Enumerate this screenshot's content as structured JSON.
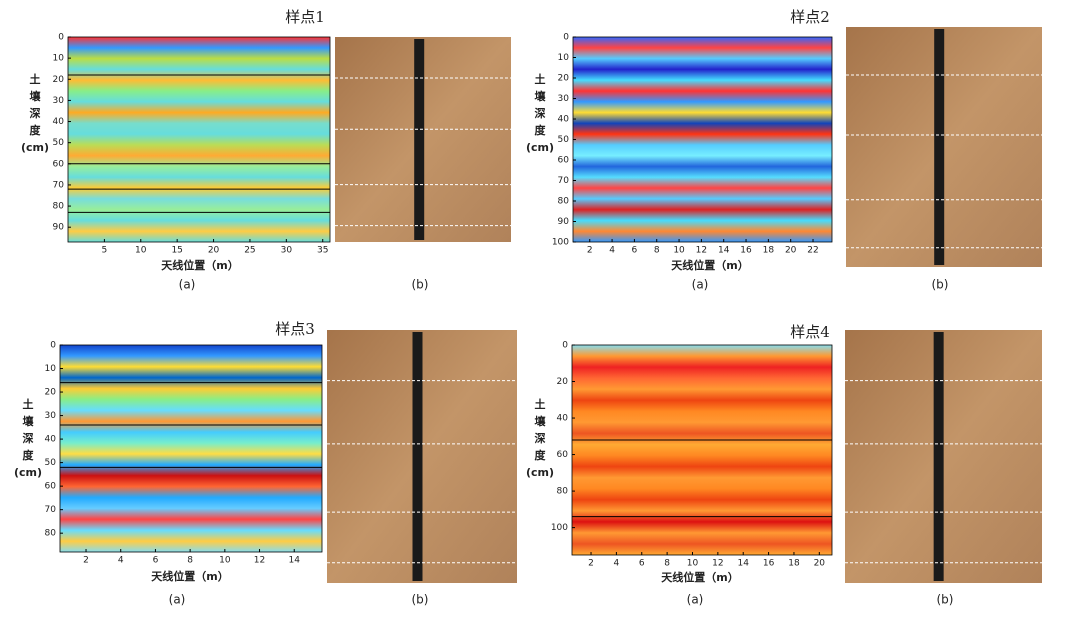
{
  "panels": [
    {
      "title": "样点1",
      "y_label": [
        "土",
        "壤",
        "深",
        "度",
        "(cm)"
      ],
      "x_label": "天线位置（m）",
      "caption_a": "(a)",
      "caption_b": "(b)",
      "xlim": [
        0,
        36
      ],
      "xticks": [
        5,
        10,
        15,
        20,
        25,
        30,
        35
      ],
      "ylim": [
        0,
        97
      ],
      "yticks": [
        0,
        10,
        20,
        30,
        40,
        50,
        60,
        70,
        80,
        90
      ],
      "boundaries": [
        18,
        60,
        72,
        83
      ]
    },
    {
      "title": "样点2",
      "y_label": [
        "土",
        "壤",
        "深",
        "度",
        "(cm)"
      ],
      "x_label": "天线位置（m）",
      "caption_a": "(a)",
      "caption_b": "(b)",
      "xlim": [
        0.5,
        23.7
      ],
      "xticks": [
        2,
        4,
        6,
        8,
        10,
        12,
        14,
        16,
        18,
        20,
        22
      ],
      "ylim": [
        0,
        100
      ],
      "yticks": [
        0,
        10,
        20,
        30,
        40,
        50,
        60,
        70,
        80,
        90,
        100
      ]
    },
    {
      "title": "样点3",
      "y_label": [
        "土",
        "壤",
        "深",
        "度",
        "(cm)"
      ],
      "x_label": "天线位置（m）",
      "caption_a": "(a)",
      "caption_b": "(b)",
      "xlim": [
        0.5,
        15.6
      ],
      "xticks": [
        2,
        4,
        6,
        8,
        10,
        12,
        14
      ],
      "ylim": [
        0,
        88
      ],
      "yticks": [
        0,
        10,
        20,
        30,
        40,
        50,
        60,
        70,
        80
      ],
      "boundaries": [
        16,
        34,
        52
      ]
    },
    {
      "title": "样点4",
      "y_label": [
        "土",
        "壤",
        "深",
        "度",
        "(cm)"
      ],
      "x_label": "天线位置（m）",
      "caption_a": "(a)",
      "caption_b": "(b)",
      "xlim": [
        0.5,
        21
      ],
      "xticks": [
        2,
        4,
        6,
        8,
        10,
        12,
        14,
        16,
        18,
        20
      ],
      "ylim": [
        0,
        115
      ],
      "yticks": [
        0,
        20,
        40,
        60,
        80,
        100
      ],
      "boundaries": [
        52,
        94
      ]
    }
  ]
}
